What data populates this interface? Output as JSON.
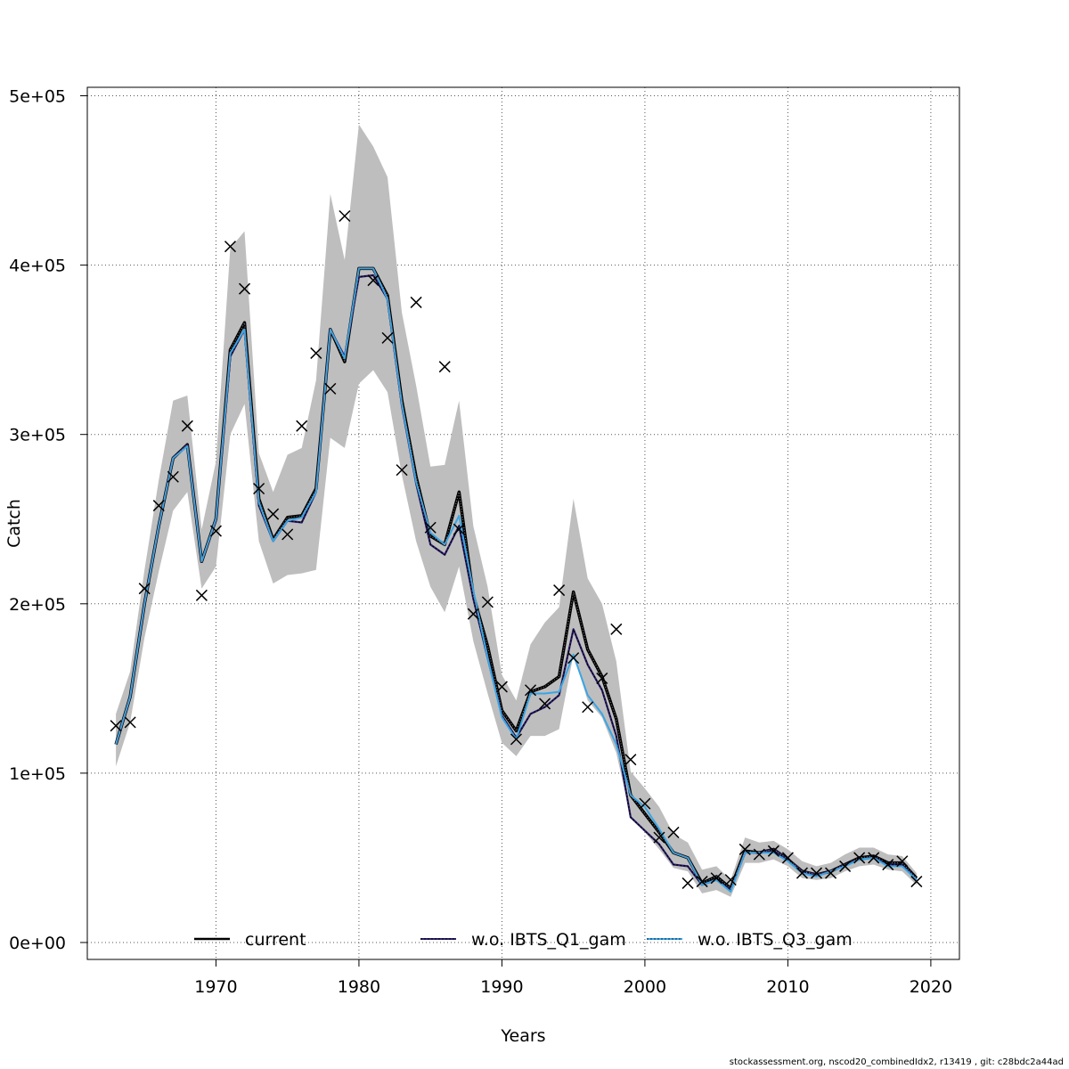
{
  "chart_data": {
    "type": "line",
    "xlabel": "Years",
    "ylabel": "Catch",
    "xlim": [
      1961,
      2022
    ],
    "ylim": [
      -10000,
      505000
    ],
    "x_ticks": [
      1970,
      1980,
      1990,
      2000,
      2010,
      2020
    ],
    "y_ticks": [
      {
        "value": 0,
        "label": "0e+00"
      },
      {
        "value": 100000,
        "label": "1e+05"
      },
      {
        "value": 200000,
        "label": "2e+05"
      },
      {
        "value": 300000,
        "label": "3e+05"
      },
      {
        "value": 400000,
        "label": "4e+05"
      },
      {
        "value": 500000,
        "label": "5e+05"
      }
    ],
    "grid": true,
    "legend_position": "bottom",
    "years": [
      1963,
      1964,
      1965,
      1966,
      1967,
      1968,
      1969,
      1970,
      1971,
      1972,
      1973,
      1974,
      1975,
      1976,
      1977,
      1978,
      1979,
      1980,
      1981,
      1982,
      1983,
      1984,
      1985,
      1986,
      1987,
      1988,
      1989,
      1990,
      1991,
      1992,
      1993,
      1994,
      1995,
      1996,
      1997,
      1998,
      1999,
      2000,
      2001,
      2002,
      2003,
      2004,
      2005,
      2006,
      2007,
      2008,
      2009,
      2010,
      2011,
      2012,
      2013,
      2014,
      2015,
      2016,
      2017,
      2018,
      2019
    ],
    "series": [
      {
        "name": "current",
        "color": "#000000",
        "style": "solid",
        "values": [
          117000,
          145000,
          200000,
          246000,
          286000,
          294000,
          225000,
          250000,
          350000,
          366000,
          262000,
          238000,
          251000,
          252000,
          268000,
          362000,
          343000,
          398000,
          398000,
          382000,
          320000,
          275000,
          240000,
          235000,
          266000,
          205000,
          175000,
          137000,
          125000,
          148000,
          151000,
          157000,
          207000,
          173000,
          157000,
          132000,
          87000,
          76000,
          65000,
          53000,
          50000,
          35000,
          39000,
          32000,
          54000,
          53000,
          55000,
          49000,
          42000,
          40000,
          42000,
          46000,
          50000,
          51000,
          47000,
          47000,
          38000
        ]
      },
      {
        "name": "w.o. IBTS_Q1_gam",
        "color": "#2b1e6e",
        "style": "dashed",
        "values": [
          117000,
          145000,
          200000,
          246000,
          286000,
          294000,
          225000,
          249000,
          346000,
          362000,
          258000,
          237000,
          249000,
          248000,
          266000,
          362000,
          346000,
          393000,
          394000,
          380000,
          317000,
          271000,
          235000,
          229000,
          246000,
          203000,
          168000,
          134000,
          121000,
          135000,
          139000,
          146000,
          185000,
          164000,
          149000,
          122000,
          74000,
          66000,
          58000,
          46000,
          45000,
          34000,
          37000,
          31000,
          53000,
          53000,
          55000,
          49000,
          42000,
          40000,
          42000,
          46000,
          49000,
          50000,
          46000,
          46000,
          37000
        ]
      },
      {
        "name": "w.o. IBTS_Q3_gam",
        "color": "#3aa5e5",
        "style": "dotted",
        "values": [
          117000,
          145000,
          200000,
          246000,
          286000,
          293000,
          225000,
          250000,
          348000,
          362000,
          260000,
          237000,
          249000,
          251000,
          266000,
          362000,
          345000,
          398000,
          398000,
          380000,
          318000,
          272000,
          242000,
          235000,
          252000,
          208000,
          168000,
          133000,
          120000,
          147000,
          147000,
          148000,
          170000,
          146000,
          135000,
          117000,
          87000,
          80000,
          67000,
          53000,
          50000,
          34000,
          37000,
          30000,
          53000,
          53000,
          53000,
          48000,
          41000,
          39000,
          42000,
          45000,
          49000,
          50000,
          45000,
          45000,
          37000
        ]
      }
    ],
    "confidence_band": {
      "color": "#bebebe",
      "lower": [
        104000,
        130000,
        180000,
        219000,
        255000,
        266000,
        209000,
        222000,
        300000,
        318000,
        237000,
        212000,
        217000,
        218000,
        220000,
        298000,
        292000,
        330000,
        338000,
        325000,
        276000,
        237000,
        210000,
        195000,
        222000,
        178000,
        147000,
        118000,
        110000,
        122000,
        122000,
        126000,
        170000,
        143000,
        133000,
        112000,
        74000,
        65000,
        55000,
        44000,
        42000,
        29000,
        31000,
        27000,
        47000,
        47000,
        49000,
        45000,
        38000,
        37000,
        38000,
        42000,
        45000,
        46000,
        43000,
        42000,
        34000
      ],
      "upper": [
        135000,
        160000,
        220000,
        273000,
        320000,
        323000,
        244000,
        284000,
        410000,
        420000,
        289000,
        266000,
        288000,
        292000,
        332000,
        442000,
        403000,
        483000,
        470000,
        452000,
        372000,
        329000,
        281000,
        282000,
        320000,
        246000,
        210000,
        158000,
        143000,
        176000,
        189000,
        198000,
        262000,
        215000,
        200000,
        166000,
        101000,
        91000,
        80000,
        64000,
        59000,
        43000,
        45000,
        37000,
        62000,
        59000,
        60000,
        55000,
        48000,
        45000,
        47000,
        52000,
        56000,
        56000,
        52000,
        51000,
        41000
      ]
    },
    "observations": {
      "marker": "x",
      "values": [
        128000,
        130000,
        209000,
        258000,
        275000,
        305000,
        205000,
        243000,
        411000,
        386000,
        268000,
        253000,
        241000,
        305000,
        348000,
        327000,
        429000,
        null,
        391000,
        357000,
        279000,
        378000,
        245000,
        340000,
        244000,
        194000,
        201000,
        151000,
        120000,
        149000,
        141000,
        208000,
        168000,
        139000,
        156000,
        185000,
        108000,
        82000,
        62000,
        65000,
        35000,
        36000,
        38000,
        37000,
        55000,
        52000,
        54000,
        50000,
        41000,
        41000,
        41000,
        45000,
        50000,
        50000,
        46000,
        48000,
        36000
      ]
    }
  },
  "footer": "stockassessment.org, nscod20_combinedIdx2, r13419 , git: c28bdc2a44ad"
}
